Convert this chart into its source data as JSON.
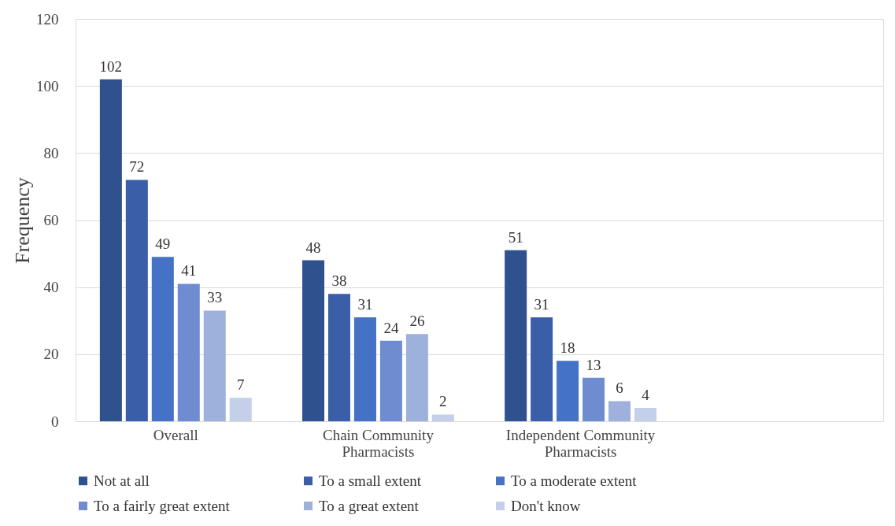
{
  "chart_data": {
    "type": "bar",
    "ylabel": "Frequency",
    "categories": [
      "Overall",
      "Chain Community Pharmacists",
      "Independent Community Pharmacists",
      null
    ],
    "series": [
      {
        "name": "Not at all",
        "color": "#2f528f",
        "values": [
          102,
          48,
          51,
          null
        ]
      },
      {
        "name": "To a small extent",
        "color": "#3a5ea8",
        "values": [
          72,
          38,
          31,
          null
        ]
      },
      {
        "name": "To a moderate extent",
        "color": "#4472c4",
        "values": [
          49,
          31,
          18,
          null
        ]
      },
      {
        "name": "To a fairly great extent",
        "color": "#6e8ccf",
        "values": [
          41,
          24,
          13,
          null
        ]
      },
      {
        "name": "To a great extent",
        "color": "#9eb0dc",
        "values": [
          33,
          26,
          6,
          null
        ]
      },
      {
        "name": "Don't know",
        "color": "#c4cfea",
        "values": [
          7,
          2,
          4,
          null
        ]
      }
    ],
    "ylim": [
      0,
      120
    ],
    "yticks": [
      0,
      20,
      40,
      60,
      80,
      100,
      120
    ],
    "grid": "y",
    "legend": "bottom",
    "data_labels": true
  }
}
